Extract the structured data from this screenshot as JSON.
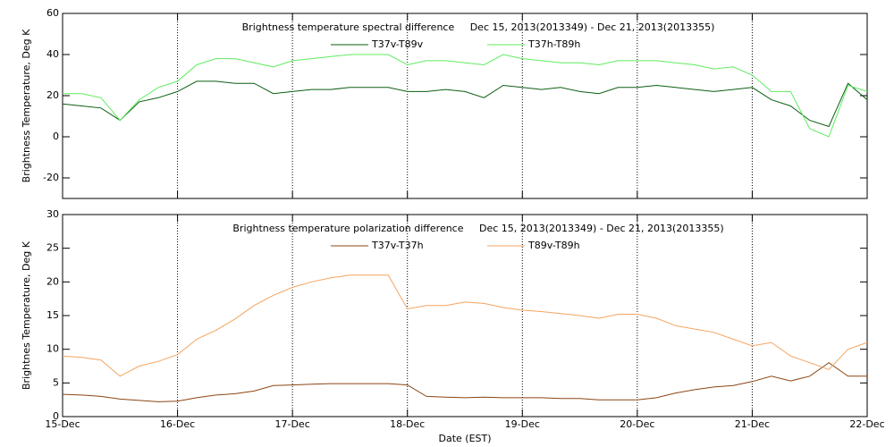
{
  "chart_data": [
    {
      "type": "line",
      "title": "Brightness temperature spectral difference     Dec 15, 2013(2013349) - Dec 21, 2013(2013355)",
      "ylabel": "Brightness Temperature, Deg K",
      "x": [
        0,
        4,
        8,
        12,
        16,
        20,
        24,
        28,
        32,
        36,
        40,
        44,
        48,
        52,
        56,
        60,
        64,
        68,
        72,
        76,
        80,
        84,
        88,
        92,
        96,
        100,
        104,
        108,
        112,
        116,
        120,
        124,
        128,
        132,
        136,
        140,
        144,
        148,
        152,
        156,
        160,
        164,
        168
      ],
      "xlim": [
        0,
        168
      ],
      "xticks": [
        0,
        24,
        48,
        72,
        96,
        120,
        144,
        168
      ],
      "ylim": [
        -30,
        60
      ],
      "yticks": [
        -20,
        0,
        20,
        40,
        60
      ],
      "grid": "x",
      "series": [
        {
          "name": "T37v-T89v",
          "color": "#0b5e12",
          "values": [
            16,
            15,
            14,
            8,
            17,
            19,
            22,
            27,
            27,
            26,
            26,
            21,
            22,
            23,
            23,
            24,
            24,
            24,
            22,
            22,
            23,
            22,
            19,
            25,
            24,
            23,
            24,
            22,
            21,
            24,
            24,
            25,
            24,
            23,
            22,
            23,
            24,
            18,
            15,
            8,
            5,
            26,
            18
          ]
        },
        {
          "name": "T37h-T89h",
          "color": "#5fec5f",
          "values": [
            21,
            21,
            19,
            8,
            18,
            24,
            27,
            35,
            38,
            38,
            36,
            34,
            37,
            38,
            39,
            40,
            40,
            40,
            35,
            37,
            37,
            36,
            35,
            40,
            38,
            37,
            36,
            36,
            35,
            37,
            37,
            37,
            36,
            35,
            33,
            34,
            30,
            22,
            22,
            4,
            0,
            25,
            22
          ]
        }
      ]
    },
    {
      "type": "line",
      "title": "Brightness temperature polarization difference     Dec 15, 2013(2013349) - Dec 21, 2013(2013355)",
      "ylabel": "Brightnes Temperature, Deg K",
      "xlabel": "Date (EST)",
      "x": [
        0,
        4,
        8,
        12,
        16,
        20,
        24,
        28,
        32,
        36,
        40,
        44,
        48,
        52,
        56,
        60,
        64,
        68,
        72,
        76,
        80,
        84,
        88,
        92,
        96,
        100,
        104,
        108,
        112,
        116,
        120,
        124,
        128,
        132,
        136,
        140,
        144,
        148,
        152,
        156,
        160,
        164,
        168
      ],
      "xlim": [
        0,
        168
      ],
      "xticks": [
        {
          "value": 0,
          "label": "15-Dec"
        },
        {
          "value": 24,
          "label": "16-Dec"
        },
        {
          "value": 48,
          "label": "17-Dec"
        },
        {
          "value": 72,
          "label": "18-Dec"
        },
        {
          "value": 96,
          "label": "19-Dec"
        },
        {
          "value": 120,
          "label": "20-Dec"
        },
        {
          "value": 144,
          "label": "21-Dec"
        },
        {
          "value": 168,
          "label": "22-Dec"
        }
      ],
      "ylim": [
        0,
        30
      ],
      "yticks": [
        0,
        5,
        10,
        15,
        20,
        25,
        30
      ],
      "grid": "x",
      "series": [
        {
          "name": "T37v-T37h",
          "color": "#8b4513",
          "values": [
            3.3,
            3.2,
            3.0,
            2.6,
            2.4,
            2.2,
            2.3,
            2.8,
            3.2,
            3.4,
            3.8,
            4.6,
            4.7,
            4.8,
            4.9,
            4.9,
            4.9,
            4.9,
            4.7,
            3.0,
            2.9,
            2.8,
            2.9,
            2.8,
            2.8,
            2.8,
            2.7,
            2.7,
            2.5,
            2.5,
            2.5,
            2.8,
            3.5,
            4,
            4.4,
            4.6,
            5.2,
            6,
            5.3,
            6,
            8,
            6,
            6
          ]
        },
        {
          "name": "T89v-T89h",
          "color": "#f4a460",
          "values": [
            9,
            8.8,
            8.4,
            6,
            7.5,
            8.2,
            9.2,
            11.5,
            12.8,
            14.5,
            16.5,
            18,
            19.2,
            20,
            20.6,
            21,
            21,
            21,
            16,
            16.5,
            16.5,
            17,
            16.8,
            16.2,
            15.8,
            15.6,
            15.3,
            15,
            14.6,
            15.2,
            15.2,
            14.6,
            13.5,
            13,
            12.5,
            11.5,
            10.5,
            11,
            9,
            8,
            7,
            10,
            11
          ]
        }
      ]
    }
  ]
}
